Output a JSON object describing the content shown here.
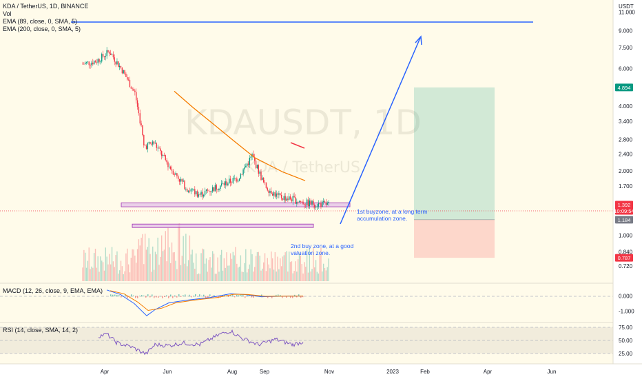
{
  "header": {
    "symbol_title": "KDA / TetherUS, 1D, BINANCE",
    "vol_label": "Vol",
    "ema1_label": "EMA (89, close, 0, SMA, 5)",
    "ema2_label": "EMA (200, close, 0, SMA, 5)"
  },
  "watermark": {
    "ticker": "KDAUSDT, 1D",
    "name": "KDA / TetherUS"
  },
  "price_axis": {
    "unit": "USDT",
    "ticks": [
      "11.000",
      "9.000",
      "7.500",
      "6.000",
      "4.000",
      "3.400",
      "2.800",
      "2.400",
      "2.000",
      "1.700",
      "1.000",
      "0.840",
      "0.720"
    ],
    "badges": [
      {
        "text": "4.894",
        "color": "#089981"
      },
      {
        "text": "1.392",
        "color": "#f23645"
      },
      {
        "text": "10:09:54",
        "color": "#f23645"
      },
      {
        "text": "1.184",
        "color": "#787b86"
      },
      {
        "text": "0.787",
        "color": "#f23645"
      }
    ]
  },
  "time_axis": {
    "ticks": [
      "Apr",
      "Jun",
      "Aug",
      "Sep",
      "Nov",
      "2023",
      "Feb",
      "Apr",
      "Jun"
    ]
  },
  "annotations": {
    "zone1": "1st buyzone, at a long term accumulation zone.",
    "zone1_line1": "1st buyzone, at a long term",
    "zone1_line2": "accumulation zone.",
    "zone2_line1": "2nd buy zone, at a good",
    "zone2_line2": "valuation zone."
  },
  "macd_pane": {
    "label": "MACD (12, 26, close, 9, EMA, EMA)",
    "ticks": [
      "0.000",
      "-1.000"
    ]
  },
  "rsi_pane": {
    "label": "RSI (14, close, SMA, 14, 2)",
    "ticks": [
      "75.00",
      "50.00",
      "25.00"
    ]
  },
  "chart_data": {
    "type": "candlestick",
    "symbol": "KDAUSDT",
    "interval": "1D",
    "price_scale": "log",
    "y_range": [
      0.65,
      12.5
    ],
    "price_series": {
      "dates": [
        "2022-03-25",
        "2022-04-05",
        "2022-04-15",
        "2022-04-25",
        "2022-05-05",
        "2022-05-10",
        "2022-05-12",
        "2022-05-20",
        "2022-06-01",
        "2022-06-15",
        "2022-06-25",
        "2022-07-10",
        "2022-07-25",
        "2022-08-05",
        "2022-08-15",
        "2022-08-25",
        "2022-09-05",
        "2022-09-15",
        "2022-09-25",
        "2022-10-05"
      ],
      "close": [
        6.3,
        6.5,
        7.2,
        5.9,
        4.6,
        3.2,
        2.6,
        2.7,
        2.1,
        1.65,
        1.55,
        1.7,
        1.85,
        2.35,
        1.7,
        1.52,
        1.48,
        1.42,
        1.4,
        1.392
      ]
    },
    "current_price": 1.392,
    "long_position": {
      "entry": 1.184,
      "target": 4.894,
      "stop": 0.787
    },
    "horizontal_line": 11.0,
    "buy_zones": [
      {
        "low": 1.36,
        "high": 1.42
      },
      {
        "low": 1.09,
        "high": 1.13
      }
    ],
    "macd_range": [
      -1.7,
      0.8
    ],
    "rsi_levels": [
      25,
      50,
      75
    ]
  }
}
